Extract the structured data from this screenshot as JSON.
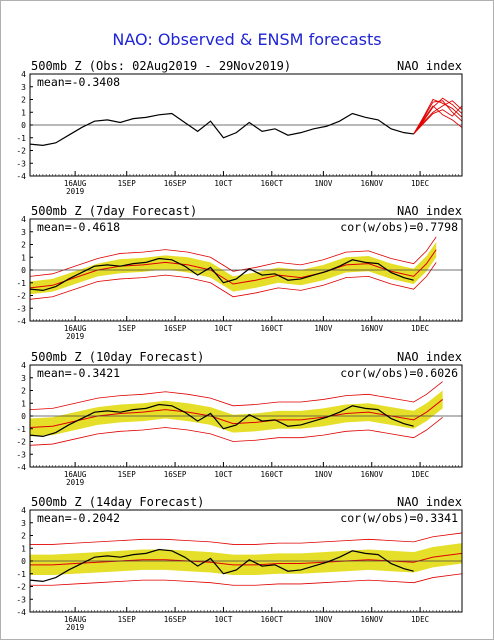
{
  "title": "NAO: Observed & ENSM forecasts",
  "colors": {
    "title": "#1f24d6",
    "observed": "#000000",
    "forecast": "#e00000",
    "spread": "#e6df2a",
    "zero_line": "#444444"
  },
  "chart_data": [
    {
      "type": "line",
      "title": "500mb Z (Obs: 02Aug2019 - 29Nov2019)",
      "right_label": "NAO index",
      "mean_label": "mean=-0.3408",
      "ylim": [
        -4,
        4
      ],
      "yticks": [
        4,
        3,
        2,
        1,
        0,
        -1,
        -2,
        -3,
        -4
      ],
      "xlim": [
        "2019-08-02",
        "2019-12-14"
      ],
      "xticks": [
        "16AUG",
        "1SEP",
        "16SEP",
        "10CT",
        "160CT",
        "1NOV",
        "16NOV",
        "1DEC"
      ],
      "xtick_dates": [
        "2019-08-16",
        "2019-09-01",
        "2019-09-16",
        "2019-10-01",
        "2019-10-16",
        "2019-11-01",
        "2019-11-16",
        "2019-12-01"
      ],
      "year_label": "2019",
      "observed": {
        "x": [
          "2019-08-02",
          "2019-08-06",
          "2019-08-10",
          "2019-08-14",
          "2019-08-18",
          "2019-08-22",
          "2019-08-26",
          "2019-08-30",
          "2019-09-03",
          "2019-09-07",
          "2019-09-11",
          "2019-09-15",
          "2019-09-19",
          "2019-09-23",
          "2019-09-27",
          "2019-10-01",
          "2019-10-05",
          "2019-10-09",
          "2019-10-13",
          "2019-10-17",
          "2019-10-21",
          "2019-10-25",
          "2019-10-29",
          "2019-11-02",
          "2019-11-06",
          "2019-11-10",
          "2019-11-14",
          "2019-11-18",
          "2019-11-22",
          "2019-11-26",
          "2019-11-29"
        ],
        "y": [
          -1.5,
          -1.6,
          -1.4,
          -0.8,
          -0.2,
          0.3,
          0.4,
          0.2,
          0.5,
          0.6,
          0.8,
          0.9,
          0.2,
          -0.5,
          0.3,
          -1.0,
          -0.6,
          0.2,
          -0.5,
          -0.3,
          -0.8,
          -0.6,
          -0.3,
          -0.1,
          0.3,
          0.9,
          0.6,
          0.4,
          -0.3,
          -0.6,
          -0.7
        ]
      },
      "forecast_members": [
        {
          "x": [
            "2019-11-29",
            "2019-12-02",
            "2019-12-05",
            "2019-12-08",
            "2019-12-11",
            "2019-12-14"
          ],
          "y": [
            -0.7,
            0.3,
            1.4,
            2.1,
            1.6,
            0.9
          ]
        },
        {
          "x": [
            "2019-11-29",
            "2019-12-02",
            "2019-12-05",
            "2019-12-08",
            "2019-12-11",
            "2019-12-14"
          ],
          "y": [
            -0.7,
            0.5,
            1.8,
            1.9,
            1.0,
            0.3
          ]
        },
        {
          "x": [
            "2019-11-29",
            "2019-12-02",
            "2019-12-05",
            "2019-12-08",
            "2019-12-11",
            "2019-12-14"
          ],
          "y": [
            -0.7,
            0.2,
            1.0,
            1.5,
            1.9,
            1.2
          ]
        },
        {
          "x": [
            "2019-11-29",
            "2019-12-02",
            "2019-12-05",
            "2019-12-08",
            "2019-12-11",
            "2019-12-14"
          ],
          "y": [
            -0.7,
            0.4,
            1.5,
            0.8,
            0.4,
            -0.2
          ]
        },
        {
          "x": [
            "2019-11-29",
            "2019-12-02",
            "2019-12-05",
            "2019-12-08",
            "2019-12-11",
            "2019-12-14"
          ],
          "y": [
            -0.7,
            0.1,
            0.9,
            1.2,
            0.7,
            1.5
          ]
        },
        {
          "x": [
            "2019-11-29",
            "2019-12-02",
            "2019-12-05",
            "2019-12-08",
            "2019-12-11",
            "2019-12-14"
          ],
          "y": [
            -0.7,
            0.6,
            2.0,
            1.7,
            1.3,
            0.6
          ]
        }
      ]
    },
    {
      "type": "line",
      "title": "500mb Z (7day Forecast)",
      "right_label": "NAO index",
      "mean_label": "mean=-0.4618",
      "corr_label": "cor(w/obs)=0.7798",
      "ylim": [
        -4,
        4
      ],
      "yticks": [
        4,
        3,
        2,
        1,
        0,
        -1,
        -2,
        -3,
        -4
      ],
      "xlim": [
        "2019-08-02",
        "2019-12-14"
      ],
      "xticks": [
        "16AUG",
        "1SEP",
        "16SEP",
        "10CT",
        "160CT",
        "1NOV",
        "16NOV",
        "1DEC"
      ],
      "xtick_dates": [
        "2019-08-16",
        "2019-09-01",
        "2019-09-16",
        "2019-10-01",
        "2019-10-16",
        "2019-11-01",
        "2019-11-16",
        "2019-12-01"
      ],
      "year_label": "2019",
      "observed": {
        "x": [
          "2019-08-02",
          "2019-08-06",
          "2019-08-10",
          "2019-08-14",
          "2019-08-18",
          "2019-08-22",
          "2019-08-26",
          "2019-08-30",
          "2019-09-03",
          "2019-09-07",
          "2019-09-11",
          "2019-09-15",
          "2019-09-19",
          "2019-09-23",
          "2019-09-27",
          "2019-10-01",
          "2019-10-05",
          "2019-10-09",
          "2019-10-13",
          "2019-10-17",
          "2019-10-21",
          "2019-10-25",
          "2019-10-29",
          "2019-11-02",
          "2019-11-06",
          "2019-11-10",
          "2019-11-14",
          "2019-11-18",
          "2019-11-22",
          "2019-11-26",
          "2019-11-29"
        ],
        "y": [
          -1.5,
          -1.6,
          -1.3,
          -0.7,
          -0.2,
          0.3,
          0.4,
          0.3,
          0.5,
          0.6,
          0.9,
          0.8,
          0.3,
          -0.4,
          0.2,
          -1.0,
          -0.7,
          0.1,
          -0.4,
          -0.3,
          -0.8,
          -0.7,
          -0.4,
          -0.1,
          0.3,
          0.8,
          0.6,
          0.5,
          -0.2,
          -0.6,
          -0.8
        ]
      },
      "ensemble_mean": {
        "x": [
          "2019-08-02",
          "2019-08-09",
          "2019-08-16",
          "2019-08-23",
          "2019-08-30",
          "2019-09-06",
          "2019-09-13",
          "2019-09-20",
          "2019-09-27",
          "2019-10-04",
          "2019-10-11",
          "2019-10-18",
          "2019-10-25",
          "2019-11-01",
          "2019-11-08",
          "2019-11-15",
          "2019-11-22",
          "2019-11-29",
          "2019-12-03",
          "2019-12-06"
        ],
        "y": [
          -1.4,
          -1.2,
          -0.6,
          0.0,
          0.3,
          0.4,
          0.6,
          0.4,
          0.0,
          -1.1,
          -0.8,
          -0.4,
          -0.6,
          -0.2,
          0.4,
          0.5,
          -0.1,
          -0.5,
          0.5,
          1.6
        ]
      },
      "spread": [
        0.5,
        0.5,
        0.5,
        0.5,
        0.55,
        0.55,
        0.55,
        0.6,
        0.6,
        0.6,
        0.6,
        0.6,
        0.6,
        0.6,
        0.6,
        0.6,
        0.6,
        0.6,
        0.6,
        0.6
      ],
      "members_spread": [
        0.9,
        0.9,
        0.9,
        0.9,
        1.0,
        1.0,
        1.0,
        1.0,
        1.0,
        1.0,
        1.0,
        1.0,
        1.0,
        1.0,
        1.0,
        1.0,
        1.0,
        1.0,
        1.0,
        1.0
      ]
    },
    {
      "type": "line",
      "title": "500mb Z (10day Forecast)",
      "right_label": "NAO index",
      "mean_label": "mean=-0.3421",
      "corr_label": "cor(w/obs)=0.6026",
      "ylim": [
        -4,
        4
      ],
      "yticks": [
        4,
        3,
        2,
        1,
        0,
        -1,
        -2,
        -3,
        -4
      ],
      "xlim": [
        "2019-08-02",
        "2019-12-14"
      ],
      "xticks": [
        "16AUG",
        "1SEP",
        "16SEP",
        "10CT",
        "160CT",
        "1NOV",
        "16NOV",
        "1DEC"
      ],
      "xtick_dates": [
        "2019-08-16",
        "2019-09-01",
        "2019-09-16",
        "2019-10-01",
        "2019-10-16",
        "2019-11-01",
        "2019-11-16",
        "2019-12-01"
      ],
      "year_label": "2019",
      "observed": {
        "x": [
          "2019-08-02",
          "2019-08-06",
          "2019-08-10",
          "2019-08-14",
          "2019-08-18",
          "2019-08-22",
          "2019-08-26",
          "2019-08-30",
          "2019-09-03",
          "2019-09-07",
          "2019-09-11",
          "2019-09-15",
          "2019-09-19",
          "2019-09-23",
          "2019-09-27",
          "2019-10-01",
          "2019-10-05",
          "2019-10-09",
          "2019-10-13",
          "2019-10-17",
          "2019-10-21",
          "2019-10-25",
          "2019-10-29",
          "2019-11-02",
          "2019-11-06",
          "2019-11-10",
          "2019-11-14",
          "2019-11-18",
          "2019-11-22",
          "2019-11-26",
          "2019-11-29"
        ],
        "y": [
          -1.5,
          -1.6,
          -1.3,
          -0.7,
          -0.2,
          0.3,
          0.4,
          0.3,
          0.5,
          0.6,
          0.9,
          0.8,
          0.3,
          -0.4,
          0.2,
          -1.0,
          -0.7,
          0.1,
          -0.4,
          -0.3,
          -0.8,
          -0.7,
          -0.4,
          -0.1,
          0.3,
          0.8,
          0.6,
          0.5,
          -0.2,
          -0.6,
          -0.8
        ]
      },
      "ensemble_mean": {
        "x": [
          "2019-08-02",
          "2019-08-09",
          "2019-08-16",
          "2019-08-23",
          "2019-08-30",
          "2019-09-06",
          "2019-09-13",
          "2019-09-20",
          "2019-09-27",
          "2019-10-04",
          "2019-10-11",
          "2019-10-18",
          "2019-10-25",
          "2019-11-01",
          "2019-11-08",
          "2019-11-15",
          "2019-11-22",
          "2019-11-29",
          "2019-12-03",
          "2019-12-08"
        ],
        "y": [
          -0.9,
          -0.8,
          -0.4,
          0.0,
          0.2,
          0.3,
          0.5,
          0.3,
          0.0,
          -0.6,
          -0.5,
          -0.3,
          -0.3,
          -0.1,
          0.2,
          0.3,
          0.0,
          -0.3,
          0.3,
          1.3
        ]
      },
      "spread": [
        0.7,
        0.7,
        0.7,
        0.7,
        0.7,
        0.7,
        0.7,
        0.7,
        0.7,
        0.7,
        0.7,
        0.7,
        0.7,
        0.7,
        0.7,
        0.7,
        0.7,
        0.7,
        0.7,
        0.7
      ],
      "members_spread": [
        1.4,
        1.4,
        1.4,
        1.4,
        1.4,
        1.4,
        1.4,
        1.4,
        1.4,
        1.4,
        1.4,
        1.4,
        1.4,
        1.4,
        1.4,
        1.4,
        1.4,
        1.4,
        1.4,
        1.4
      ]
    },
    {
      "type": "line",
      "title": "500mb Z (14day Forecast)",
      "right_label": "NAO index",
      "mean_label": "mean=-0.2042",
      "corr_label": "cor(w/obs)=0.3341",
      "ylim": [
        -4,
        4
      ],
      "yticks": [
        4,
        3,
        2,
        1,
        0,
        -1,
        -2,
        -3,
        -4
      ],
      "xlim": [
        "2019-08-02",
        "2019-12-14"
      ],
      "xticks": [
        "16AUG",
        "1SEP",
        "16SEP",
        "10CT",
        "160CT",
        "1NOV",
        "16NOV",
        "1DEC"
      ],
      "xtick_dates": [
        "2019-08-16",
        "2019-09-01",
        "2019-09-16",
        "2019-10-01",
        "2019-10-16",
        "2019-11-01",
        "2019-11-16",
        "2019-12-01"
      ],
      "year_label": "2019",
      "observed": {
        "x": [
          "2019-08-02",
          "2019-08-06",
          "2019-08-10",
          "2019-08-14",
          "2019-08-18",
          "2019-08-22",
          "2019-08-26",
          "2019-08-30",
          "2019-09-03",
          "2019-09-07",
          "2019-09-11",
          "2019-09-15",
          "2019-09-19",
          "2019-09-23",
          "2019-09-27",
          "2019-10-01",
          "2019-10-05",
          "2019-10-09",
          "2019-10-13",
          "2019-10-17",
          "2019-10-21",
          "2019-10-25",
          "2019-10-29",
          "2019-11-02",
          "2019-11-06",
          "2019-11-10",
          "2019-11-14",
          "2019-11-18",
          "2019-11-22",
          "2019-11-26",
          "2019-11-29"
        ],
        "y": [
          -1.5,
          -1.6,
          -1.3,
          -0.7,
          -0.2,
          0.3,
          0.4,
          0.3,
          0.5,
          0.6,
          0.9,
          0.8,
          0.3,
          -0.4,
          0.2,
          -1.0,
          -0.7,
          0.1,
          -0.4,
          -0.3,
          -0.8,
          -0.7,
          -0.4,
          -0.1,
          0.3,
          0.8,
          0.6,
          0.5,
          -0.2,
          -0.6,
          -0.8
        ]
      },
      "ensemble_mean": {
        "x": [
          "2019-08-02",
          "2019-08-09",
          "2019-08-16",
          "2019-08-23",
          "2019-08-30",
          "2019-09-06",
          "2019-09-13",
          "2019-09-20",
          "2019-09-27",
          "2019-10-04",
          "2019-10-11",
          "2019-10-18",
          "2019-10-25",
          "2019-11-01",
          "2019-11-08",
          "2019-11-15",
          "2019-11-22",
          "2019-11-29",
          "2019-12-05",
          "2019-12-14"
        ],
        "y": [
          -0.3,
          -0.3,
          -0.2,
          -0.1,
          0.0,
          0.1,
          0.1,
          0.0,
          -0.1,
          -0.3,
          -0.3,
          -0.2,
          -0.2,
          -0.1,
          0.0,
          0.1,
          0.0,
          -0.1,
          0.3,
          0.6
        ]
      },
      "spread": [
        0.8,
        0.8,
        0.8,
        0.8,
        0.8,
        0.8,
        0.8,
        0.8,
        0.8,
        0.8,
        0.8,
        0.8,
        0.8,
        0.8,
        0.8,
        0.8,
        0.8,
        0.8,
        0.8,
        0.8
      ],
      "members_spread": [
        1.6,
        1.6,
        1.6,
        1.6,
        1.6,
        1.6,
        1.6,
        1.6,
        1.6,
        1.6,
        1.6,
        1.6,
        1.6,
        1.6,
        1.6,
        1.6,
        1.6,
        1.6,
        1.6,
        1.6
      ]
    }
  ]
}
